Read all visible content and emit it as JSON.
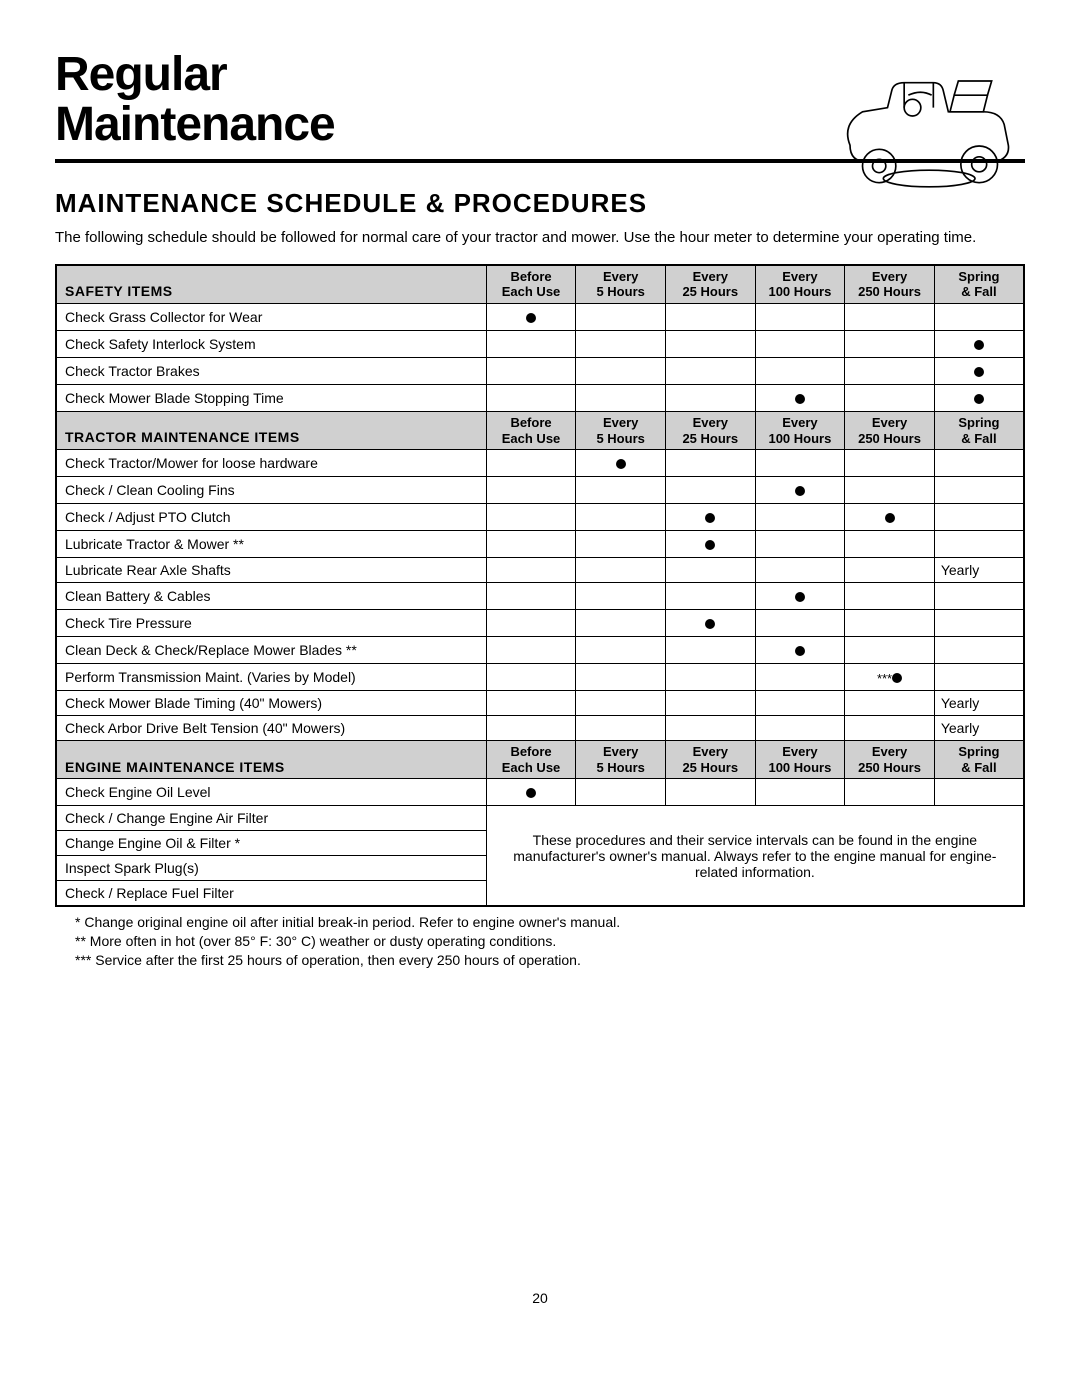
{
  "page": {
    "title_line1": "Regular",
    "title_line2": "Maintenance",
    "subhead": "MAINTENANCE SCHEDULE & PROCEDURES",
    "intro": "The following schedule should be followed for normal care of your tractor and mower. Use the hour meter to determine your operating time.",
    "page_number": "20"
  },
  "columns": [
    {
      "line1": "Before",
      "line2": "Each Use"
    },
    {
      "line1": "Every",
      "line2": "5 Hours"
    },
    {
      "line1": "Every",
      "line2": "25 Hours"
    },
    {
      "line1": "Every",
      "line2": "100 Hours"
    },
    {
      "line1": "Every",
      "line2": "250 Hours"
    },
    {
      "line1": "Spring",
      "line2": "& Fall"
    }
  ],
  "sections": [
    {
      "label": "SAFETY ITEMS",
      "rows": [
        {
          "item": "Check Grass Collector for Wear",
          "marks": [
            "dot",
            "",
            "",
            "",
            "",
            ""
          ]
        },
        {
          "item": "Check Safety Interlock System",
          "marks": [
            "",
            "",
            "",
            "",
            "",
            "dot"
          ]
        },
        {
          "item": "Check Tractor Brakes",
          "marks": [
            "",
            "",
            "",
            "",
            "",
            "dot"
          ]
        },
        {
          "item": "Check Mower Blade Stopping Time",
          "marks": [
            "",
            "",
            "",
            "dot",
            "",
            "dot"
          ]
        }
      ]
    },
    {
      "label": "TRACTOR MAINTENANCE ITEMS",
      "rows": [
        {
          "item": "Check Tractor/Mower for loose hardware",
          "marks": [
            "",
            "dot",
            "",
            "",
            "",
            ""
          ]
        },
        {
          "item": "Check / Clean Cooling Fins",
          "marks": [
            "",
            "",
            "",
            "dot",
            "",
            ""
          ]
        },
        {
          "item": "Check / Adjust PTO Clutch",
          "marks": [
            "",
            "",
            "dot",
            "",
            "dot",
            ""
          ]
        },
        {
          "item": "Lubricate Tractor & Mower **",
          "marks": [
            "",
            "",
            "dot",
            "",
            "",
            ""
          ]
        },
        {
          "item": "Lubricate Rear Axle Shafts",
          "marks": [
            "",
            "",
            "",
            "",
            "",
            "Yearly"
          ]
        },
        {
          "item": "Clean Battery & Cables",
          "marks": [
            "",
            "",
            "",
            "dot",
            "",
            ""
          ]
        },
        {
          "item": "Check Tire Pressure",
          "marks": [
            "",
            "",
            "dot",
            "",
            "",
            ""
          ]
        },
        {
          "item": "Clean Deck & Check/Replace Mower Blades **",
          "marks": [
            "",
            "",
            "",
            "dot",
            "",
            ""
          ]
        },
        {
          "item": "Perform Transmission Maint. (Varies by Model)",
          "marks": [
            "",
            "",
            "",
            "",
            "***dot",
            ""
          ]
        },
        {
          "item": "Check Mower Blade Timing (40\" Mowers)",
          "marks": [
            "",
            "",
            "",
            "",
            "",
            "Yearly"
          ]
        },
        {
          "item": "Check Arbor Drive Belt Tension (40\" Mowers)",
          "marks": [
            "",
            "",
            "",
            "",
            "",
            "Yearly"
          ]
        }
      ]
    },
    {
      "label": "ENGINE MAINTENANCE ITEMS",
      "rows": [
        {
          "item": "Check Engine Oil Level",
          "marks": [
            "dot",
            "",
            "",
            "",
            "",
            ""
          ]
        },
        {
          "item": "Check / Change Engine Air Filter",
          "note_start": true
        },
        {
          "item": "Change Engine Oil & Filter *"
        },
        {
          "item": "Inspect Spark Plug(s)"
        },
        {
          "item": "Check / Replace Fuel Filter"
        }
      ],
      "note": "These procedures and their service intervals can be found in the engine manufacturer's owner's manual.  Always refer to the engine manual for engine-related information."
    }
  ],
  "footnotes": [
    "*  Change original engine oil after initial break-in period.  Refer to engine owner's manual.",
    "**  More often in hot (over 85° F: 30° C) weather or dusty operating conditions.",
    "***  Service after the first 25 hours of operation, then every 250 hours of operation."
  ]
}
